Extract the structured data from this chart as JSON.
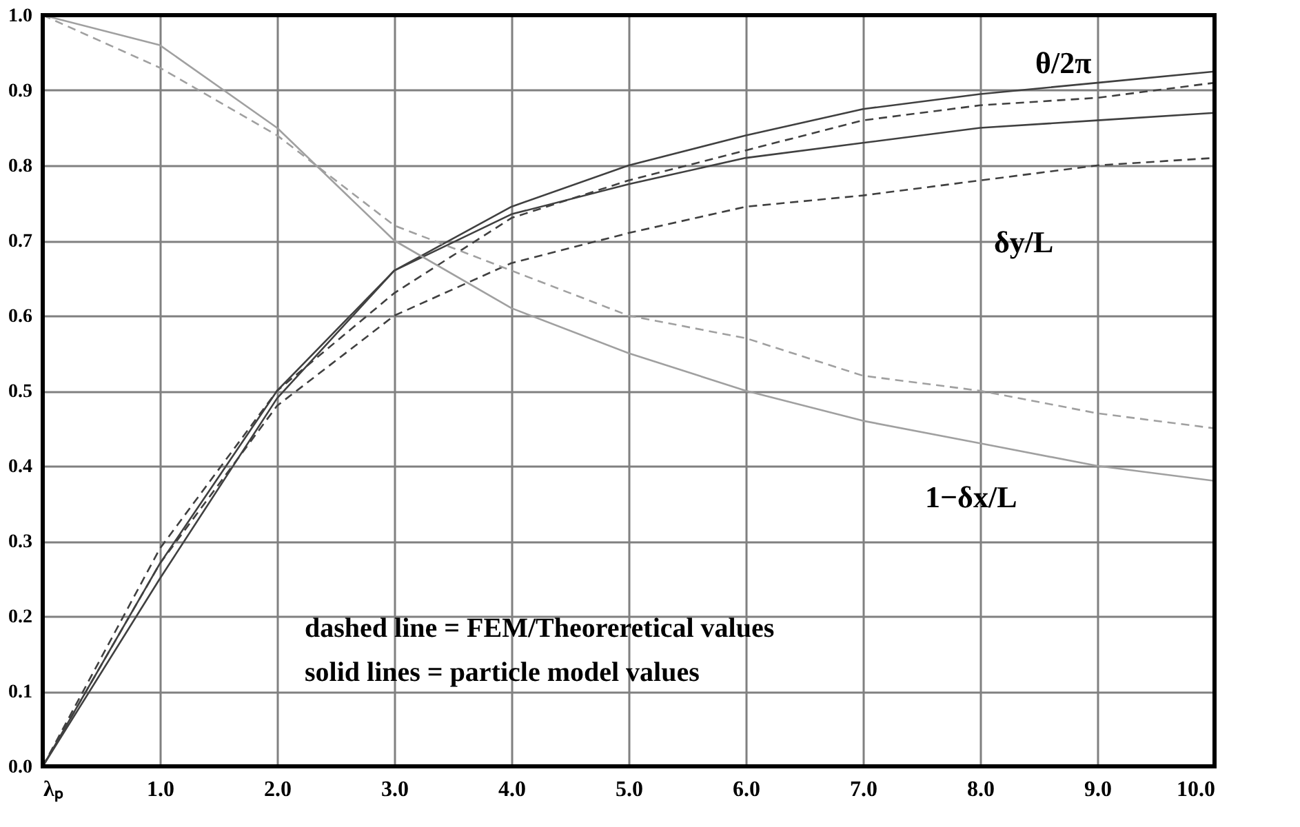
{
  "chart_data": {
    "type": "line",
    "x": [
      0,
      1,
      2,
      3,
      4,
      5,
      6,
      7,
      8,
      9,
      10
    ],
    "series": [
      {
        "color": "#404040",
        "line_style": "solid",
        "values": [
          0,
          0.27,
          0.5,
          0.66,
          0.745,
          0.8,
          0.84,
          0.875,
          0.895,
          0.91,
          0.925
        ]
      },
      {
        "color": "#404040",
        "line_style": "dashed",
        "values": [
          0,
          0.29,
          0.5,
          0.63,
          0.73,
          0.78,
          0.82,
          0.86,
          0.88,
          0.89,
          0.91
        ]
      },
      {
        "color": "#404040",
        "line_style": "solid",
        "values": [
          0,
          0.25,
          0.49,
          0.66,
          0.735,
          0.775,
          0.81,
          0.83,
          0.85,
          0.86,
          0.87
        ]
      },
      {
        "color": "#404040",
        "line_style": "dashed",
        "values": [
          0,
          0.27,
          0.48,
          0.6,
          0.67,
          0.71,
          0.745,
          0.76,
          0.78,
          0.8,
          0.81
        ]
      },
      {
        "color": "#a0a0a0",
        "line_style": "solid",
        "values": [
          1.0,
          0.96,
          0.85,
          0.7,
          0.61,
          0.55,
          0.5,
          0.46,
          0.43,
          0.4,
          0.38
        ]
      },
      {
        "color": "#a0a0a0",
        "line_style": "dashed",
        "values": [
          1.0,
          0.93,
          0.84,
          0.72,
          0.66,
          0.6,
          0.57,
          0.52,
          0.5,
          0.47,
          0.45
        ]
      }
    ],
    "xlim": [
      0,
      10
    ],
    "ylim": [
      0,
      1.0
    ],
    "xticks": [
      {
        "value": 0,
        "label": "λₚ"
      },
      {
        "value": 1,
        "label": "1.0"
      },
      {
        "value": 2,
        "label": "2.0"
      },
      {
        "value": 3,
        "label": "3.0"
      },
      {
        "value": 4,
        "label": "4.0"
      },
      {
        "value": 5,
        "label": "5.0"
      },
      {
        "value": 6,
        "label": "6.0"
      },
      {
        "value": 7,
        "label": "7.0"
      },
      {
        "value": 8,
        "label": "8.0"
      },
      {
        "value": 9,
        "label": "9.0"
      },
      {
        "value": 10,
        "label": "10.0"
      }
    ],
    "yticks": [
      {
        "value": 0,
        "label": "0.0"
      },
      {
        "value": 0.1,
        "label": "0.1"
      },
      {
        "value": 0.2,
        "label": "0.2"
      },
      {
        "value": 0.3,
        "label": "0.3"
      },
      {
        "value": 0.4,
        "label": "0.4"
      },
      {
        "value": 0.5,
        "label": "0.5"
      },
      {
        "value": 0.6,
        "label": "0.6"
      },
      {
        "value": 0.7,
        "label": "0.7"
      },
      {
        "value": 0.8,
        "label": "0.8"
      },
      {
        "value": 0.9,
        "label": "0.9"
      },
      {
        "value": 1.0,
        "label": "1.0"
      }
    ],
    "grid": true,
    "marker": "none",
    "annotations": [
      "θ/2π",
      "δy/L",
      "1−δx/L",
      "dashed line = FEM/Theoreretical values",
      "solid lines = particle model values"
    ]
  }
}
